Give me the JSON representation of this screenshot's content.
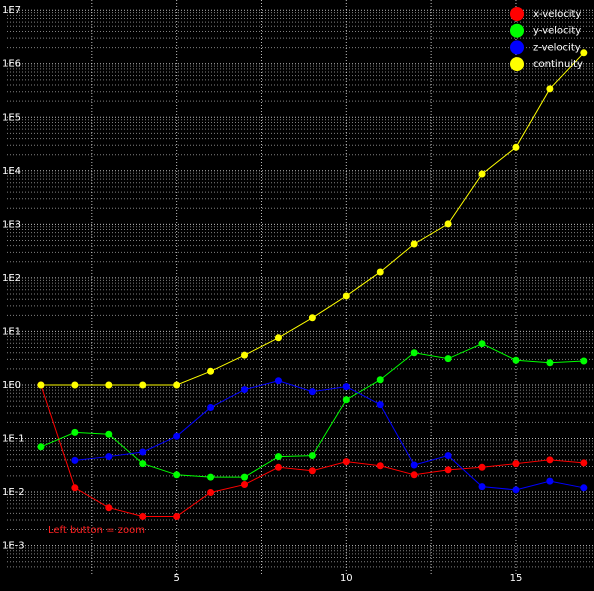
{
  "chart_data": {
    "type": "line",
    "annotation": "Left button = zoom",
    "annotation_color": "#ff2020",
    "log_y": true,
    "grid": true,
    "log_minor_grid": true,
    "x": [
      1,
      2,
      3,
      4,
      5,
      6,
      7,
      8,
      9,
      10,
      11,
      12,
      13,
      14,
      15,
      16,
      17
    ],
    "xlim": [
      0,
      17.3
    ],
    "xticks": [
      5,
      10,
      15
    ],
    "x_minor_grid": [
      2.5,
      7.5,
      12.5
    ],
    "ylim": [
      0.00035,
      15500000
    ],
    "yticks": [
      {
        "value": 0.001,
        "label": "1E-3"
      },
      {
        "value": 0.01,
        "label": "1E-2"
      },
      {
        "value": 0.1,
        "label": "1E-1"
      },
      {
        "value": 1,
        "label": "1E0"
      },
      {
        "value": 10,
        "label": "1E1"
      },
      {
        "value": 100,
        "label": "1E2"
      },
      {
        "value": 1000,
        "label": "1E3"
      },
      {
        "value": 10000,
        "label": "1E4"
      },
      {
        "value": 100000,
        "label": "1E5"
      },
      {
        "value": 1000000,
        "label": "1E6"
      },
      {
        "value": 10000000,
        "label": "1E7"
      }
    ],
    "legend": "top-right",
    "series": [
      {
        "name": "x-velocity",
        "color": "#ff0000",
        "values": [
          1,
          0.012,
          0.0051,
          0.0035,
          0.0035,
          0.0098,
          0.0138,
          0.029,
          0.025,
          0.037,
          0.031,
          0.021,
          0.026,
          0.029,
          0.034,
          0.04,
          0.035
        ]
      },
      {
        "name": "y-velocity",
        "color": "#00ff00",
        "values": [
          0.07,
          0.13,
          0.12,
          0.034,
          0.021,
          0.019,
          0.019,
          0.046,
          0.048,
          0.53,
          1.25,
          4.0,
          3.1,
          5.9,
          2.9,
          2.6,
          2.8
        ]
      },
      {
        "name": "z-velocity",
        "color": "#0000ff",
        "values": [
          null,
          0.039,
          0.046,
          0.056,
          0.11,
          0.38,
          0.82,
          1.2,
          0.75,
          0.93,
          0.43,
          0.032,
          0.048,
          0.0126,
          0.011,
          0.016,
          0.012
        ]
      },
      {
        "name": "continuity",
        "color": "#ffff00",
        "values": [
          1,
          1,
          1,
          1,
          1,
          1.8,
          3.6,
          7.6,
          18,
          46,
          129,
          430,
          1020,
          8700,
          27500,
          340000,
          1600000
        ]
      }
    ]
  }
}
